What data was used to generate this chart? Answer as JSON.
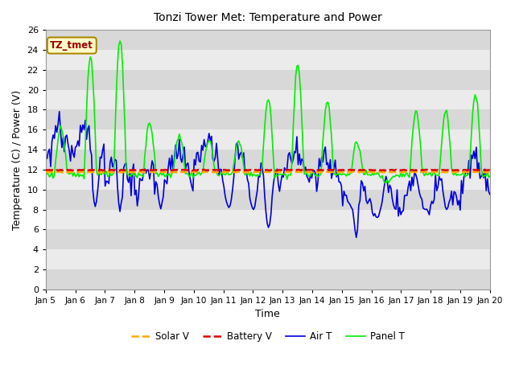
{
  "title": "Tonzi Tower Met: Temperature and Power",
  "xlabel": "Time",
  "ylabel": "Temperature (C) / Power (V)",
  "ylim": [
    0,
    26
  ],
  "fig_bg_color": "#ffffff",
  "plot_bg_color": "#ffffff",
  "band_color_dark": "#d8d8d8",
  "band_color_light": "#ebebeb",
  "timezone_label": "TZ_tmet",
  "xtick_labels": [
    "Jan 5",
    "Jan 6",
    "Jan 7",
    "Jan 8",
    "Jan 9",
    "Jan 10",
    "Jan 11",
    "Jan 12",
    "Jan 13",
    "Jan 14",
    "Jan 15",
    "Jan 16",
    "Jan 17",
    "Jan 18",
    "Jan 19",
    "Jan 20"
  ],
  "series": {
    "panel_t": {
      "color": "#00ee00",
      "linewidth": 1.2,
      "label": "Panel T"
    },
    "battery_v": {
      "color": "#dd0000",
      "linewidth": 1.8,
      "linestyle": "--",
      "label": "Battery V"
    },
    "air_t": {
      "color": "#0000dd",
      "linewidth": 1.2,
      "label": "Air T"
    },
    "solar_v": {
      "color": "#ffaa00",
      "linewidth": 1.8,
      "linestyle": "--",
      "label": "Solar V"
    }
  }
}
